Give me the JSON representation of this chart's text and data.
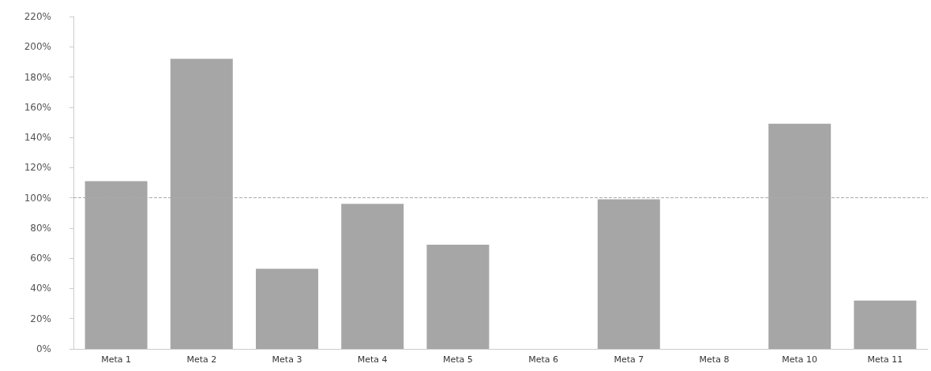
{
  "chart_data": {
    "type": "bar",
    "categories": [
      "Meta 1",
      "Meta 2",
      "Meta 3",
      "Meta 4",
      "Meta 5",
      "Meta 6",
      "Meta 7",
      "Meta 8",
      "Meta 10",
      "Meta 11"
    ],
    "values": [
      111,
      192,
      53,
      96,
      69,
      0,
      99,
      0,
      149,
      32
    ],
    "color": "#a6a6a6",
    "ylim": [
      0,
      220
    ],
    "yticks": [
      {
        "value": 0,
        "label": "0%"
      },
      {
        "value": 20,
        "label": "20%"
      },
      {
        "value": 40,
        "label": "40%"
      },
      {
        "value": 60,
        "label": "60%"
      },
      {
        "value": 80,
        "label": "80%"
      },
      {
        "value": 100,
        "label": "100%"
      },
      {
        "value": 120,
        "label": "120%"
      },
      {
        "value": 140,
        "label": "140%"
      },
      {
        "value": 160,
        "label": "160%"
      },
      {
        "value": 180,
        "label": "180%"
      },
      {
        "value": 200,
        "label": "200%"
      },
      {
        "value": 220,
        "label": "220%"
      }
    ],
    "ref_lines": [
      {
        "axis": "y",
        "value": 100,
        "color": "#aaaaaa",
        "line_style": "dashed"
      }
    ],
    "grid": false
  }
}
